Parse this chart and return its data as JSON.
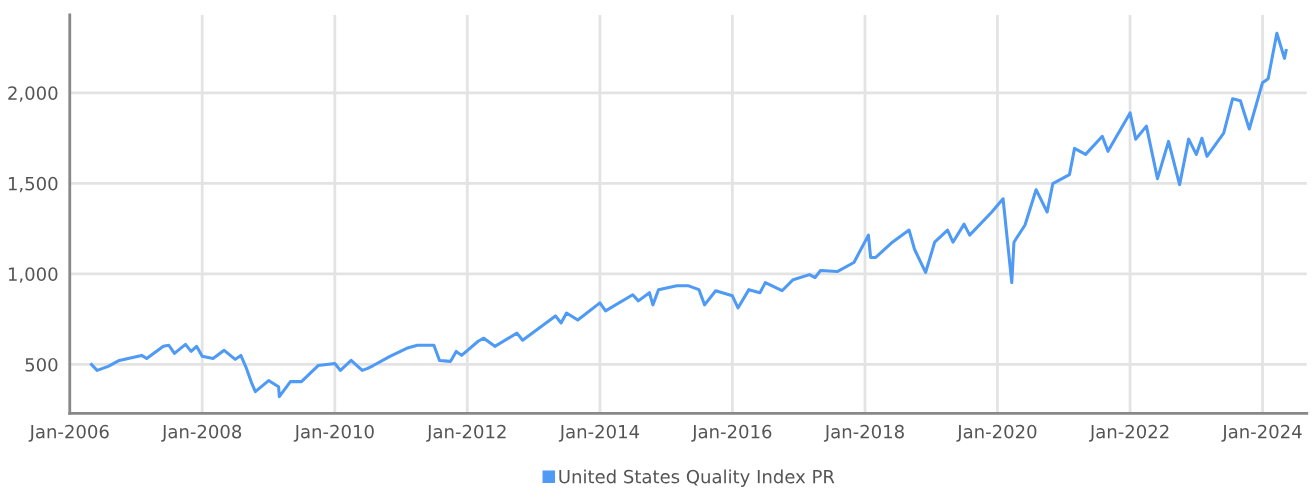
{
  "chart_data": {
    "type": "line",
    "x": [
      "2006-05",
      "2006-06",
      "2006-08",
      "2006-10",
      "2007-02",
      "2007-03",
      "2007-06",
      "2007-07",
      "2007-08",
      "2007-10",
      "2007-11",
      "2007-12",
      "2008-01",
      "2008-03",
      "2008-05",
      "2008-07",
      "2008-08",
      "2008-09",
      "2008-10",
      "2008-10-20",
      "2009-01",
      "2009-02-25",
      "2009-03",
      "2009-05",
      "2009-07",
      "2009-10",
      "2010-01",
      "2010-02",
      "2010-04",
      "2010-06",
      "2010-07",
      "2010-08",
      "2010-11",
      "2011-02",
      "2011-04",
      "2011-07",
      "2011-08",
      "2011-10",
      "2011-11",
      "2011-12",
      "2012-03",
      "2012-04",
      "2012-06",
      "2012-10",
      "2012-11",
      "2013-05",
      "2013-06",
      "2013-07",
      "2013-09",
      "2014-01",
      "2014-02",
      "2014-07",
      "2014-08",
      "2014-10",
      "2014-10-20",
      "2014-11-20",
      "2015-03",
      "2015-05",
      "2015-07",
      "2015-08",
      "2015-10",
      "2016-01",
      "2016-02",
      "2016-04",
      "2016-06",
      "2016-07",
      "2016-10",
      "2016-12",
      "2017-03",
      "2017-04",
      "2017-05",
      "2017-08",
      "2017-11",
      "2018-01-20",
      "2018-02",
      "2018-03",
      "2018-06",
      "2018-09",
      "2018-10",
      "2018-12",
      "2019-01-20",
      "2019-04",
      "2019-05",
      "2019-07",
      "2019-08",
      "2019-12",
      "2020-02",
      "2020-03-20",
      "2020-04",
      "2020-06",
      "2020-08",
      "2020-10",
      "2020-11",
      "2021-02",
      "2021-03",
      "2021-05",
      "2021-08",
      "2021-09",
      "2022-01",
      "2022-02",
      "2022-04",
      "2022-06",
      "2022-08",
      "2022-10",
      "2022-11-20",
      "2023-01",
      "2023-02",
      "2023-03",
      "2023-06",
      "2023-07-20",
      "2023-09",
      "2023-10-20",
      "2024-01",
      "2024-02",
      "2024-03-20",
      "2024-05",
      "2024-05-10"
    ],
    "series": [
      {
        "name": "United States Quality Index PR",
        "color": "#4e9af5",
        "values": [
          500,
          467,
          489,
          522,
          550,
          533,
          600,
          606,
          561,
          611,
          572,
          600,
          545,
          533,
          578,
          528,
          550,
          478,
          394,
          350,
          411,
          377,
          322,
          405,
          405,
          494,
          505,
          467,
          522,
          467,
          478,
          494,
          545,
          589,
          606,
          606,
          522,
          517,
          572,
          550,
          628,
          645,
          600,
          673,
          634,
          768,
          729,
          784,
          745,
          840,
          796,
          885,
          851,
          896,
          829,
          913,
          935,
          935,
          913,
          829,
          907,
          879,
          812,
          913,
          896,
          952,
          907,
          968,
          996,
          980,
          1019,
          1013,
          1063,
          1214,
          1091,
          1091,
          1175,
          1242,
          1136,
          1008,
          1175,
          1242,
          1175,
          1275,
          1214,
          1342,
          1415,
          952,
          1175,
          1270,
          1465,
          1342,
          1498,
          1548,
          1693,
          1660,
          1760,
          1677,
          1889,
          1744,
          1816,
          1526,
          1732,
          1493,
          1744,
          1660,
          1749,
          1649,
          1777,
          1967,
          1956,
          1800,
          2056,
          2078,
          2329,
          2190,
          2234
        ]
      }
    ],
    "xlim": [
      "2006-01-01",
      "2024-09"
    ],
    "xticks": [
      {
        "value": "2006-01-01",
        "label": "Jan-2006"
      },
      {
        "value": "2008-01-01",
        "label": "Jan-2008"
      },
      {
        "value": "2010-01-01",
        "label": "Jan-2010"
      },
      {
        "value": "2012-01-01",
        "label": "Jan-2012"
      },
      {
        "value": "2014-01-01",
        "label": "Jan-2014"
      },
      {
        "value": "2016-01-01",
        "label": "Jan-2016"
      },
      {
        "value": "2018-01-01",
        "label": "Jan-2018"
      },
      {
        "value": "2020-01-01",
        "label": "Jan-2020"
      },
      {
        "value": "2022-01-01",
        "label": "Jan-2022"
      },
      {
        "value": "2024-01-01",
        "label": "Jan-2024"
      }
    ],
    "ylim": [
      230,
      2430
    ],
    "yticks": [
      {
        "value": 500,
        "label": "500"
      },
      {
        "value": 1000,
        "label": "1,000"
      },
      {
        "value": 1500,
        "label": "1,500"
      },
      {
        "value": 2000,
        "label": "2,000"
      }
    ],
    "grid": true,
    "legend": "bottom",
    "marker": "none",
    "line_style": "solid"
  }
}
